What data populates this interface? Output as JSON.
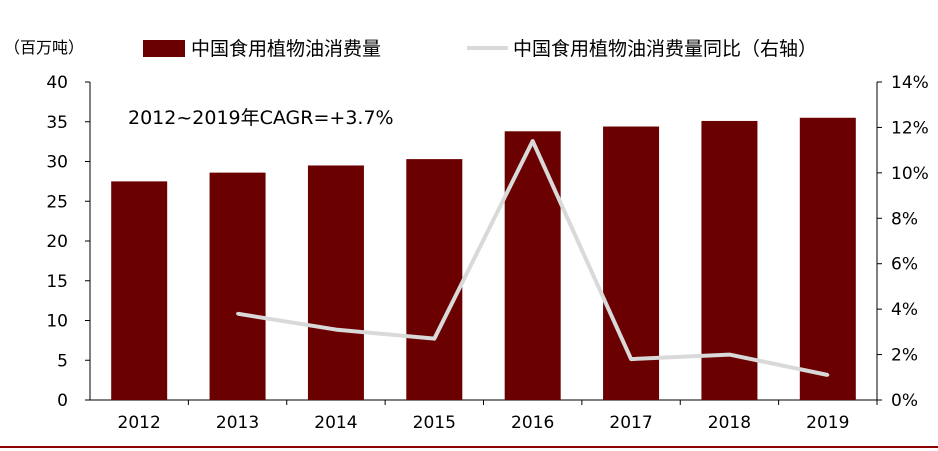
{
  "chart_data": {
    "type": "bar",
    "categories": [
      "2012",
      "2013",
      "2014",
      "2015",
      "2016",
      "2017",
      "2018",
      "2019"
    ],
    "series": [
      {
        "name": "中国食用植物油消费量",
        "kind": "bar",
        "axis": "left",
        "color": "#6b0000",
        "values": [
          27.5,
          28.6,
          29.5,
          30.3,
          33.8,
          34.4,
          35.1,
          35.5
        ]
      },
      {
        "name": "中国食用植物油消费量同比（右轴）",
        "kind": "line",
        "axis": "right",
        "color": "#d9d9d9",
        "values": [
          null,
          3.8,
          3.1,
          2.7,
          11.4,
          1.8,
          2.0,
          1.1
        ]
      }
    ],
    "left_axis": {
      "unit_label": "（百万吨）",
      "ylim": [
        0,
        40
      ],
      "ticks": [
        "0",
        "5",
        "10",
        "15",
        "20",
        "25",
        "30",
        "35",
        "40"
      ]
    },
    "right_axis": {
      "ylim": [
        0,
        14
      ],
      "ticks": [
        "0%",
        "2%",
        "4%",
        "6%",
        "8%",
        "10%",
        "12%",
        "14%"
      ]
    },
    "annotation": "2012~2019年CAGR=+3.7%",
    "legend_position": "top"
  }
}
